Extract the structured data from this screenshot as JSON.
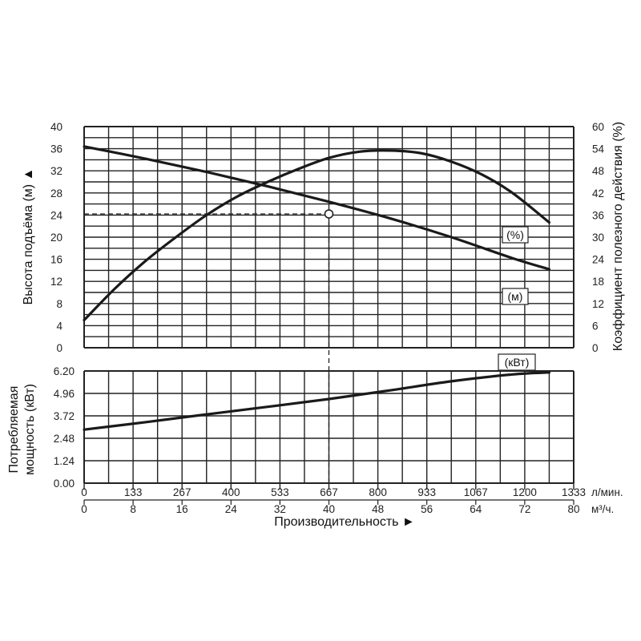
{
  "chart_data": {
    "type": "line",
    "x_axis": {
      "label": "Производительность ►",
      "flow_lmin": {
        "ticks": [
          "0",
          "133",
          "267",
          "400",
          "533",
          "667",
          "800",
          "933",
          "1067",
          "1200",
          "1333"
        ],
        "unit": "л/мин."
      },
      "flow_m3h": {
        "ticks": [
          "0",
          "8",
          "16",
          "24",
          "32",
          "40",
          "48",
          "56",
          "64",
          "72",
          "80"
        ],
        "unit": "м³/ч."
      },
      "range": [
        0,
        80
      ]
    },
    "head_axis": {
      "label": "Высота подъёма (м) ▲",
      "ticks": [
        "0",
        "4",
        "8",
        "12",
        "16",
        "20",
        "24",
        "28",
        "32",
        "36",
        "40"
      ],
      "range": [
        0,
        40
      ]
    },
    "efficiency_axis": {
      "label": "Коэффициент полезного действия (%)",
      "ticks": [
        "0",
        "6",
        "12",
        "18",
        "24",
        "30",
        "36",
        "42",
        "48",
        "54",
        "60"
      ],
      "range": [
        0,
        60
      ]
    },
    "power_axis": {
      "label_line1": "Потребляемая",
      "label_line2": "мощность (кВт)",
      "ticks": [
        "0.00",
        "1.24",
        "2.48",
        "3.72",
        "4.96",
        "6.20"
      ],
      "range": [
        0,
        6.2
      ]
    },
    "grid": true,
    "series": [
      {
        "name": "(м)",
        "axis": "head",
        "x": [
          0,
          10,
          20,
          30,
          40,
          50,
          60,
          70,
          76
        ],
        "y": [
          36.4,
          34.2,
          31.8,
          29.2,
          26.4,
          23.4,
          20.0,
          16.2,
          14.2
        ]
      },
      {
        "name": "(%)",
        "axis": "efficiency",
        "x": [
          0,
          5,
          10,
          15,
          20,
          25,
          30,
          35,
          40,
          45,
          50,
          55,
          60,
          65,
          70,
          76
        ],
        "y": [
          7.5,
          16,
          23.5,
          30,
          36,
          41,
          45,
          48.5,
          51.5,
          53.2,
          53.5,
          52.8,
          50.5,
          47,
          42,
          34
        ]
      },
      {
        "name": "(кВт)",
        "axis": "power",
        "x": [
          0,
          10,
          20,
          30,
          40,
          50,
          60,
          70,
          76
        ],
        "y": [
          2.96,
          3.37,
          3.8,
          4.22,
          4.65,
          5.13,
          5.63,
          6.01,
          6.12
        ]
      }
    ],
    "operating_point": {
      "x": 40,
      "head": 24.2
    }
  }
}
